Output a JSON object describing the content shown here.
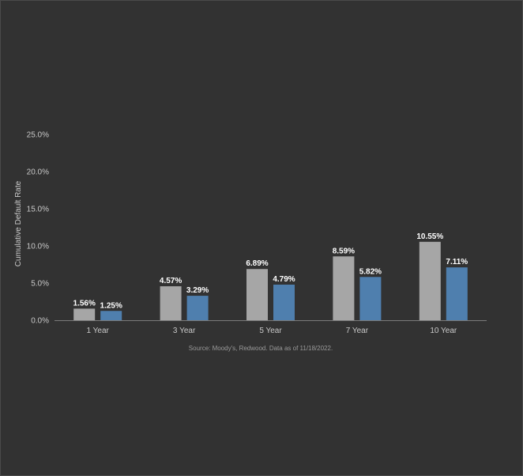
{
  "chart_data": {
    "type": "bar",
    "title": "",
    "xlabel": "",
    "ylabel": "Cumulative Default Rate",
    "categories": [
      "1 Year",
      "3 Year",
      "5 Year",
      "7 Year",
      "10 Year"
    ],
    "series": [
      {
        "values": [
          1.56,
          4.57,
          6.89,
          8.59,
          10.55
        ],
        "labels": [
          "1.56%",
          "4.57%",
          "6.89%",
          "8.59%",
          "10.55%"
        ],
        "color": "#a6a6a6"
      },
      {
        "values": [
          1.25,
          3.29,
          4.79,
          5.82,
          7.11
        ],
        "labels": [
          "1.25%",
          "3.29%",
          "4.79%",
          "5.82%",
          "7.11%"
        ],
        "color": "#4f7fae"
      }
    ],
    "ylim": [
      0,
      25
    ],
    "yticks": [
      0,
      5,
      10,
      15,
      20,
      25
    ],
    "ytick_labels": [
      "0.0%",
      "5.0%",
      "10.0%",
      "15.0%",
      "20.0%",
      "25.0%"
    ],
    "grid": false,
    "legend": "none",
    "source_note": "Source: Moody's, Redwood. Data as of 11/18/2022."
  }
}
